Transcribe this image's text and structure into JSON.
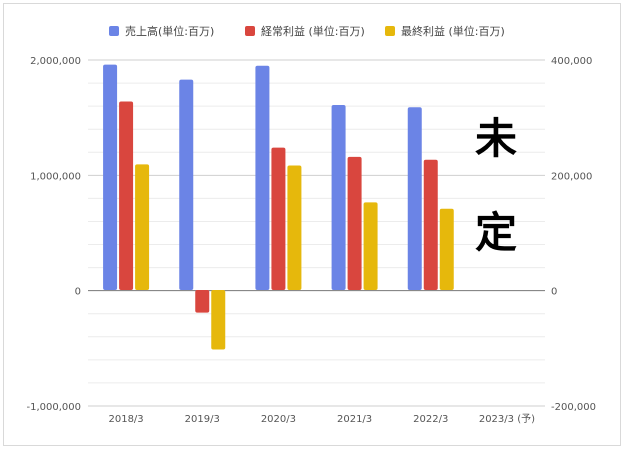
{
  "chart_data": {
    "type": "bar",
    "categories": [
      "2018/3",
      "2019/3",
      "2020/3",
      "2021/3",
      "2022/3",
      "2023/3 (予)"
    ],
    "series": [
      {
        "name": "売上高(単位:百万)",
        "color": "#6b84e6",
        "axis": "left",
        "values": [
          1960000,
          1830000,
          1950000,
          1610000,
          1590000,
          null
        ]
      },
      {
        "name": "経常利益 (単位:百万)",
        "color": "#d9463e",
        "axis": "right",
        "values": [
          328000,
          -38000,
          248000,
          232000,
          227000,
          null
        ]
      },
      {
        "name": "最終利益 (単位:百万)",
        "color": "#e6b80c",
        "axis": "right",
        "values": [
          219000,
          -102000,
          217000,
          153000,
          142000,
          null
        ]
      }
    ],
    "y_left": {
      "ylim": [
        -1000000,
        2000000
      ],
      "ticks": [
        "2,000,000",
        "1,000,000",
        "0",
        "-1,000,000"
      ],
      "tick_values": [
        2000000,
        1000000,
        0,
        -1000000
      ]
    },
    "y_right": {
      "ylim": [
        -200000,
        400000
      ],
      "ticks": [
        "400,000",
        "200,000",
        "0",
        "-200,000"
      ],
      "tick_values": [
        400000,
        200000,
        0,
        -200000
      ]
    },
    "legend_position": "top",
    "grid": true,
    "annotation": [
      "未",
      "定"
    ]
  }
}
